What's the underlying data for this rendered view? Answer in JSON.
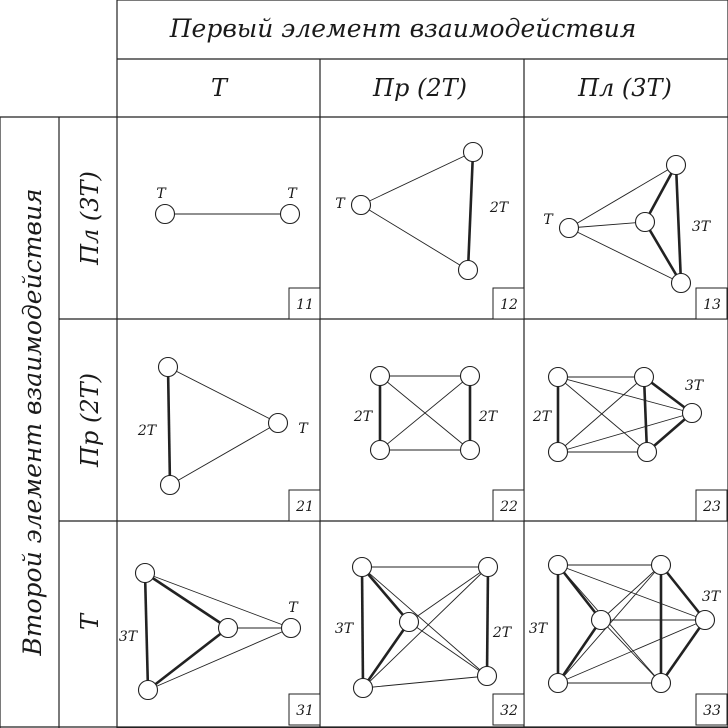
{
  "header": {
    "top": "Первый элемент взаимодействия",
    "side": "Второй элемент взаимодействия",
    "columns": [
      "T",
      "Пр (2T)",
      "Пл (3T)"
    ],
    "rows": [
      "Пл (3T)",
      "Пр (2T)",
      "T"
    ]
  },
  "cells": [
    {
      "number": "11",
      "labels": [
        "T",
        "T"
      ]
    },
    {
      "number": "12",
      "labels": [
        "T",
        "2T"
      ]
    },
    {
      "number": "13",
      "labels": [
        "T",
        "3T"
      ]
    },
    {
      "number": "21",
      "labels": [
        "2T",
        "T"
      ]
    },
    {
      "number": "22",
      "labels": [
        "2T",
        "2T"
      ]
    },
    {
      "number": "23",
      "labels": [
        "2T",
        "3T"
      ]
    },
    {
      "number": "31",
      "labels": [
        "3T",
        "T"
      ]
    },
    {
      "number": "32",
      "labels": [
        "3T",
        "2T"
      ]
    },
    {
      "number": "33",
      "labels": [
        "3T",
        "3T"
      ]
    }
  ]
}
